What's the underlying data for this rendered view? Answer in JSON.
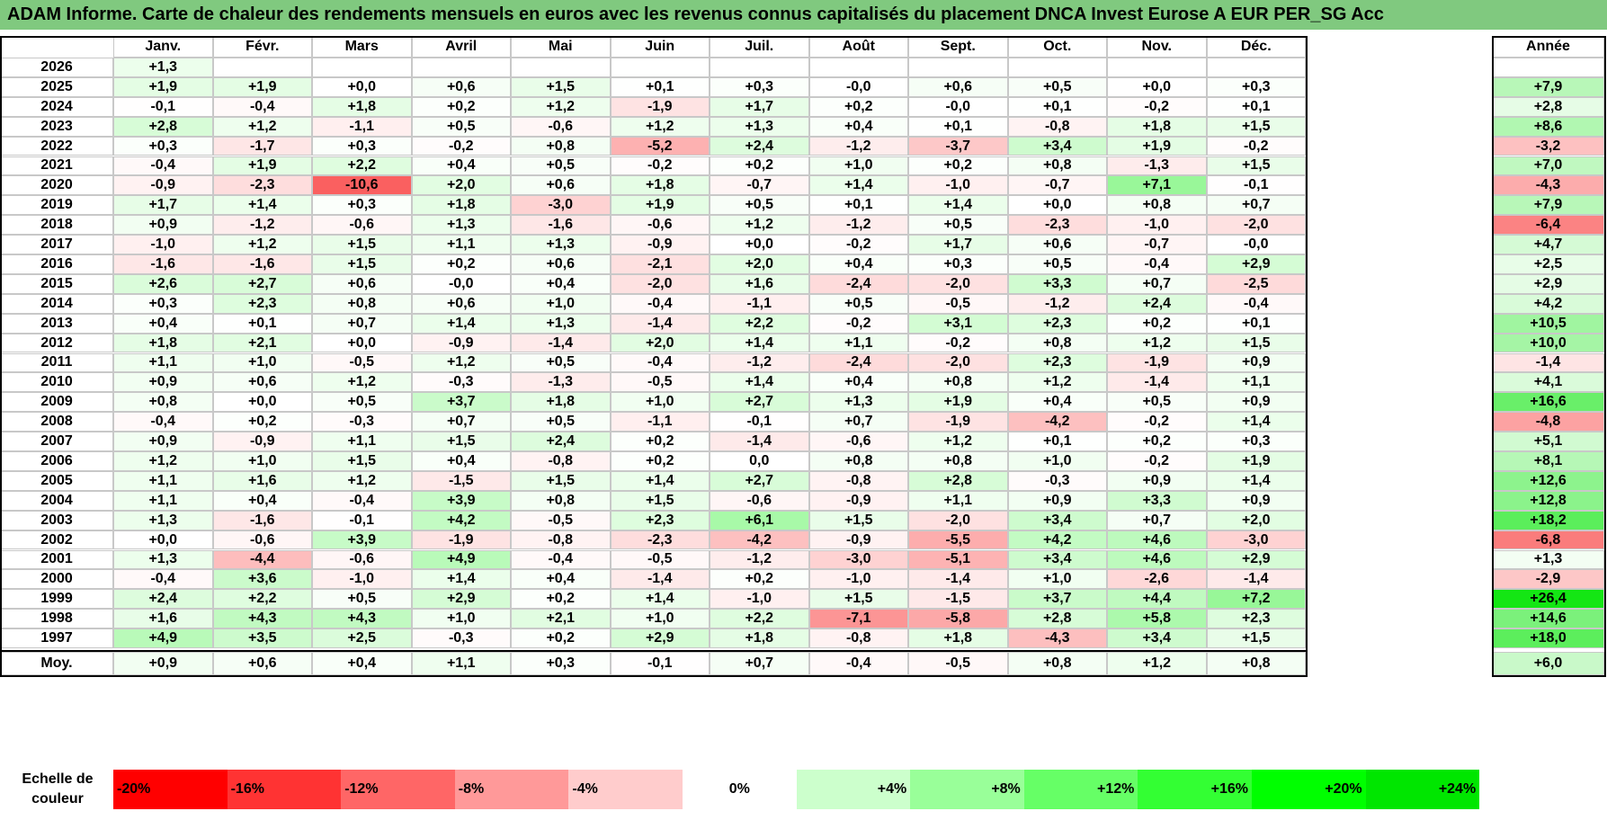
{
  "header": {
    "title": "ADAM Informe. Carte de chaleur des rendements mensuels en euros avec les revenus connus capitalisés du placement DNCA Invest Eurose A EUR PER_SG Acc"
  },
  "chart_data": {
    "type": "heatmap",
    "title": "ADAM Informe. Carte de chaleur des rendements mensuels en euros avec les revenus connus capitalisés du placement DNCA Invest Eurose A EUR PER_SG Acc",
    "columns": [
      "Janv.",
      "Févr.",
      "Mars",
      "Avril",
      "Mai",
      "Juin",
      "Juil.",
      "Août",
      "Sept.",
      "Oct.",
      "Nov.",
      "Déc."
    ],
    "annual_label": "Année",
    "average_label": "Moy.",
    "rows": [
      {
        "year": "2026",
        "months": [
          "+1,3",
          "",
          "",
          "",
          "",
          "",
          "",
          "",
          "",
          "",
          "",
          ""
        ],
        "annual": ""
      },
      {
        "year": "2025",
        "months": [
          "+1,9",
          "+1,9",
          "+0,0",
          "+0,6",
          "+1,5",
          "+0,1",
          "+0,3",
          "-0,0",
          "+0,6",
          "+0,5",
          "+0,0",
          "+0,3"
        ],
        "annual": "+7,9"
      },
      {
        "year": "2024",
        "months": [
          "-0,1",
          "-0,4",
          "+1,8",
          "+0,2",
          "+1,2",
          "-1,9",
          "+1,7",
          "+0,2",
          "-0,0",
          "+0,1",
          "-0,2",
          "+0,1"
        ],
        "annual": "+2,8"
      },
      {
        "year": "2023",
        "months": [
          "+2,8",
          "+1,2",
          "-1,1",
          "+0,5",
          "-0,6",
          "+1,2",
          "+1,3",
          "+0,4",
          "+0,1",
          "-0,8",
          "+1,8",
          "+1,5"
        ],
        "annual": "+8,6"
      },
      {
        "year": "2022",
        "months": [
          "+0,3",
          "-1,7",
          "+0,3",
          "-0,2",
          "+0,8",
          "-5,2",
          "+2,4",
          "-1,2",
          "-3,7",
          "+3,4",
          "+1,9",
          "-0,2"
        ],
        "annual": "-3,2"
      },
      {
        "year": "2021",
        "months": [
          "-0,4",
          "+1,9",
          "+2,2",
          "+0,4",
          "+0,5",
          "-0,2",
          "+0,2",
          "+1,0",
          "+0,2",
          "+0,8",
          "-1,3",
          "+1,5"
        ],
        "annual": "+7,0"
      },
      {
        "year": "2020",
        "months": [
          "-0,9",
          "-2,3",
          "-10,6",
          "+2,0",
          "+0,6",
          "+1,8",
          "-0,7",
          "+1,4",
          "-1,0",
          "-0,7",
          "+7,1",
          "-0,1"
        ],
        "annual": "-4,3"
      },
      {
        "year": "2019",
        "months": [
          "+1,7",
          "+1,4",
          "+0,3",
          "+1,8",
          "-3,0",
          "+1,9",
          "+0,5",
          "+0,1",
          "+1,4",
          "+0,0",
          "+0,8",
          "+0,7"
        ],
        "annual": "+7,9"
      },
      {
        "year": "2018",
        "months": [
          "+0,9",
          "-1,2",
          "-0,6",
          "+1,3",
          "-1,6",
          "-0,6",
          "+1,2",
          "-1,2",
          "+0,5",
          "-2,3",
          "-1,0",
          "-2,0"
        ],
        "annual": "-6,4"
      },
      {
        "year": "2017",
        "months": [
          "-1,0",
          "+1,2",
          "+1,5",
          "+1,1",
          "+1,3",
          "-0,9",
          "+0,0",
          "-0,2",
          "+1,7",
          "+0,6",
          "-0,7",
          "-0,0"
        ],
        "annual": "+4,7"
      },
      {
        "year": "2016",
        "months": [
          "-1,6",
          "-1,6",
          "+1,5",
          "+0,2",
          "+0,6",
          "-2,1",
          "+2,0",
          "+0,4",
          "+0,3",
          "+0,5",
          "-0,4",
          "+2,9"
        ],
        "annual": "+2,5"
      },
      {
        "year": "2015",
        "months": [
          "+2,6",
          "+2,7",
          "+0,6",
          "-0,0",
          "+0,4",
          "-2,0",
          "+1,6",
          "-2,4",
          "-2,0",
          "+3,3",
          "+0,7",
          "-2,5"
        ],
        "annual": "+2,9"
      },
      {
        "year": "2014",
        "months": [
          "+0,3",
          "+2,3",
          "+0,8",
          "+0,6",
          "+1,0",
          "-0,4",
          "-1,1",
          "+0,5",
          "-0,5",
          "-1,2",
          "+2,4",
          "-0,4"
        ],
        "annual": "+4,2"
      },
      {
        "year": "2013",
        "months": [
          "+0,4",
          "+0,1",
          "+0,7",
          "+1,4",
          "+1,3",
          "-1,4",
          "+2,2",
          "-0,2",
          "+3,1",
          "+2,3",
          "+0,2",
          "+0,1"
        ],
        "annual": "+10,5"
      },
      {
        "year": "2012",
        "months": [
          "+1,8",
          "+2,1",
          "+0,0",
          "-0,9",
          "-1,4",
          "+2,0",
          "+1,4",
          "+1,1",
          "-0,2",
          "+0,8",
          "+1,2",
          "+1,5"
        ],
        "annual": "+10,0"
      },
      {
        "year": "2011",
        "months": [
          "+1,1",
          "+1,0",
          "-0,5",
          "+1,2",
          "+0,5",
          "-0,4",
          "-1,2",
          "-2,4",
          "-2,0",
          "+2,3",
          "-1,9",
          "+0,9"
        ],
        "annual": "-1,4"
      },
      {
        "year": "2010",
        "months": [
          "+0,9",
          "+0,6",
          "+1,2",
          "-0,3",
          "-1,3",
          "-0,5",
          "+1,4",
          "+0,4",
          "+0,8",
          "+1,2",
          "-1,4",
          "+1,1"
        ],
        "annual": "+4,1"
      },
      {
        "year": "2009",
        "months": [
          "+0,8",
          "+0,0",
          "+0,5",
          "+3,7",
          "+1,8",
          "+1,0",
          "+2,7",
          "+1,3",
          "+1,9",
          "+0,4",
          "+0,5",
          "+0,9"
        ],
        "annual": "+16,6"
      },
      {
        "year": "2008",
        "months": [
          "-0,4",
          "+0,2",
          "-0,3",
          "+0,7",
          "+0,5",
          "-1,1",
          "-0,1",
          "+0,7",
          "-1,9",
          "-4,2",
          "-0,2",
          "+1,4"
        ],
        "annual": "-4,8"
      },
      {
        "year": "2007",
        "months": [
          "+0,9",
          "-0,9",
          "+1,1",
          "+1,5",
          "+2,4",
          "+0,2",
          "-1,4",
          "-0,6",
          "+1,2",
          "+0,1",
          "+0,2",
          "+0,3"
        ],
        "annual": "+5,1"
      },
      {
        "year": "2006",
        "months": [
          "+1,2",
          "+1,0",
          "+1,5",
          "+0,4",
          "-0,8",
          "+0,2",
          "0,0",
          "+0,8",
          "+0,8",
          "+1,0",
          "-0,2",
          "+1,9"
        ],
        "annual": "+8,1"
      },
      {
        "year": "2005",
        "months": [
          "+1,1",
          "+1,6",
          "+1,2",
          "-1,5",
          "+1,5",
          "+1,4",
          "+2,7",
          "-0,8",
          "+2,8",
          "-0,3",
          "+0,9",
          "+1,4"
        ],
        "annual": "+12,6"
      },
      {
        "year": "2004",
        "months": [
          "+1,1",
          "+0,4",
          "-0,4",
          "+3,9",
          "+0,8",
          "+1,5",
          "-0,6",
          "-0,9",
          "+1,1",
          "+0,9",
          "+3,3",
          "+0,9"
        ],
        "annual": "+12,8"
      },
      {
        "year": "2003",
        "months": [
          "+1,3",
          "-1,6",
          "-0,1",
          "+4,2",
          "-0,5",
          "+2,3",
          "+6,1",
          "+1,5",
          "-2,0",
          "+3,4",
          "+0,7",
          "+2,0"
        ],
        "annual": "+18,2"
      },
      {
        "year": "2002",
        "months": [
          "+0,0",
          "-0,6",
          "+3,9",
          "-1,9",
          "-0,8",
          "-2,3",
          "-4,2",
          "-0,9",
          "-5,5",
          "+4,2",
          "+4,6",
          "-3,0"
        ],
        "annual": "-6,8"
      },
      {
        "year": "2001",
        "months": [
          "+1,3",
          "-4,4",
          "-0,6",
          "+4,9",
          "-0,4",
          "-0,5",
          "-1,2",
          "-3,0",
          "-5,1",
          "+3,4",
          "+4,6",
          "+2,9"
        ],
        "annual": "+1,3"
      },
      {
        "year": "2000",
        "months": [
          "-0,4",
          "+3,6",
          "-1,0",
          "+1,4",
          "+0,4",
          "-1,4",
          "+0,2",
          "-1,0",
          "-1,4",
          "+1,0",
          "-2,6",
          "-1,4"
        ],
        "annual": "-2,9"
      },
      {
        "year": "1999",
        "months": [
          "+2,4",
          "+2,2",
          "+0,5",
          "+2,9",
          "+0,2",
          "+1,4",
          "-1,0",
          "+1,5",
          "-1,5",
          "+3,7",
          "+4,4",
          "+7,2"
        ],
        "annual": "+26,4"
      },
      {
        "year": "1998",
        "months": [
          "+1,6",
          "+4,3",
          "+4,3",
          "+1,0",
          "+2,1",
          "+1,0",
          "+2,2",
          "-7,1",
          "-5,8",
          "+2,8",
          "+5,8",
          "+2,3"
        ],
        "annual": "+14,6"
      },
      {
        "year": "1997",
        "months": [
          "+4,9",
          "+3,5",
          "+2,5",
          "-0,3",
          "+0,2",
          "+2,9",
          "+1,8",
          "-0,8",
          "+1,8",
          "-4,3",
          "+3,4",
          "+1,5"
        ],
        "annual": "+18,0"
      }
    ],
    "average": {
      "months": [
        "+0,9",
        "+0,6",
        "+0,4",
        "+1,1",
        "+0,3",
        "-0,1",
        "+0,7",
        "-0,4",
        "-0,5",
        "+0,8",
        "+1,2",
        "+0,8"
      ],
      "annual": "+6,0"
    },
    "color_scale": {
      "label": "Echelle de couleur",
      "steps": [
        {
          "label": "-20%",
          "value": -20,
          "color": "#ff0000"
        },
        {
          "label": "-16%",
          "value": -16,
          "color": "#ff3333"
        },
        {
          "label": "-12%",
          "value": -12,
          "color": "#ff6666"
        },
        {
          "label": "-8%",
          "value": -8,
          "color": "#ff9999"
        },
        {
          "label": "-4%",
          "value": -4,
          "color": "#ffcccc"
        },
        {
          "label": "0%",
          "value": 0,
          "color": "#ffffff"
        },
        {
          "label": "+4%",
          "value": 4,
          "color": "#ccffcc"
        },
        {
          "label": "+8%",
          "value": 8,
          "color": "#99ff99"
        },
        {
          "label": "+12%",
          "value": 12,
          "color": "#66ff66"
        },
        {
          "label": "+16%",
          "value": 16,
          "color": "#33ff33"
        },
        {
          "label": "+20%",
          "value": 20,
          "color": "#00ff00"
        },
        {
          "label": "+24%",
          "value": 24,
          "color": "#00e600"
        }
      ]
    }
  }
}
